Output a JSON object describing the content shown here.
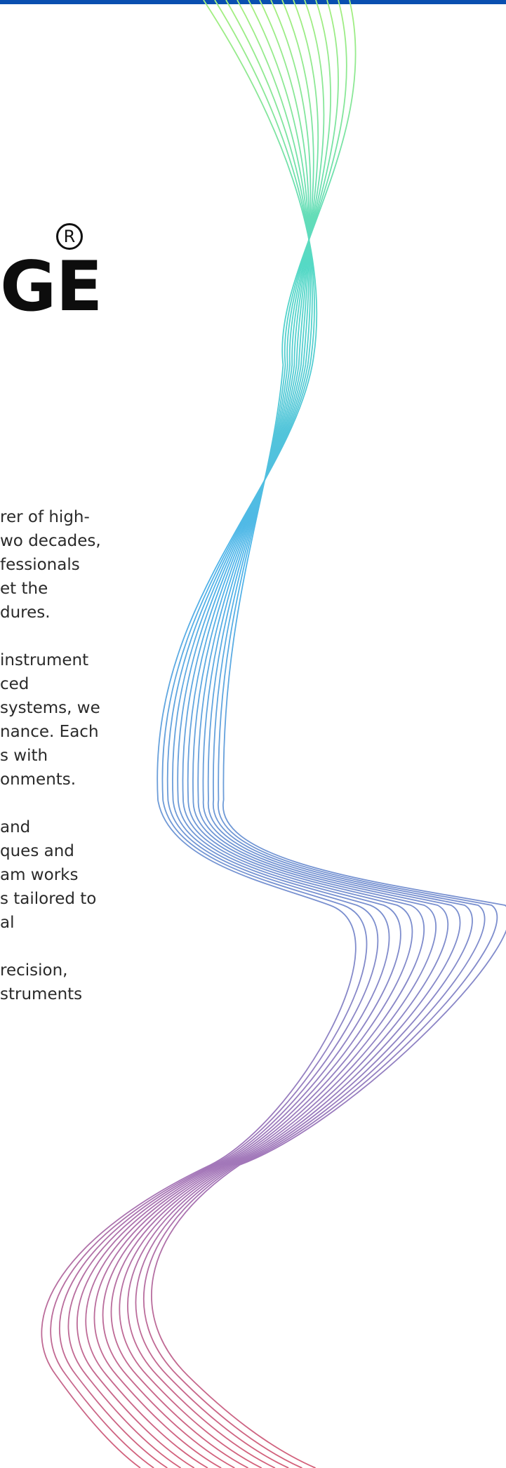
{
  "header": {
    "accent_color": "#0a4fb0"
  },
  "brand": {
    "logo_text": "GE",
    "registered_mark": "R"
  },
  "intro": {
    "paragraphs": [
      [
        "rer of high-",
        "wo decades,",
        "fessionals",
        "et the",
        "dures."
      ],
      [
        "instrument",
        "ced",
        "systems, we",
        "nance. Each",
        "s with",
        "onments."
      ],
      [
        "and",
        "ques and",
        "am works",
        "s tailored to",
        "al"
      ],
      [
        "recision,",
        "struments"
      ]
    ]
  },
  "decoration": {
    "name": "flowing-wave-lines",
    "colors": [
      "#a6ef7d",
      "#4fbbe6",
      "#7a8fcf",
      "#d4617a"
    ]
  }
}
